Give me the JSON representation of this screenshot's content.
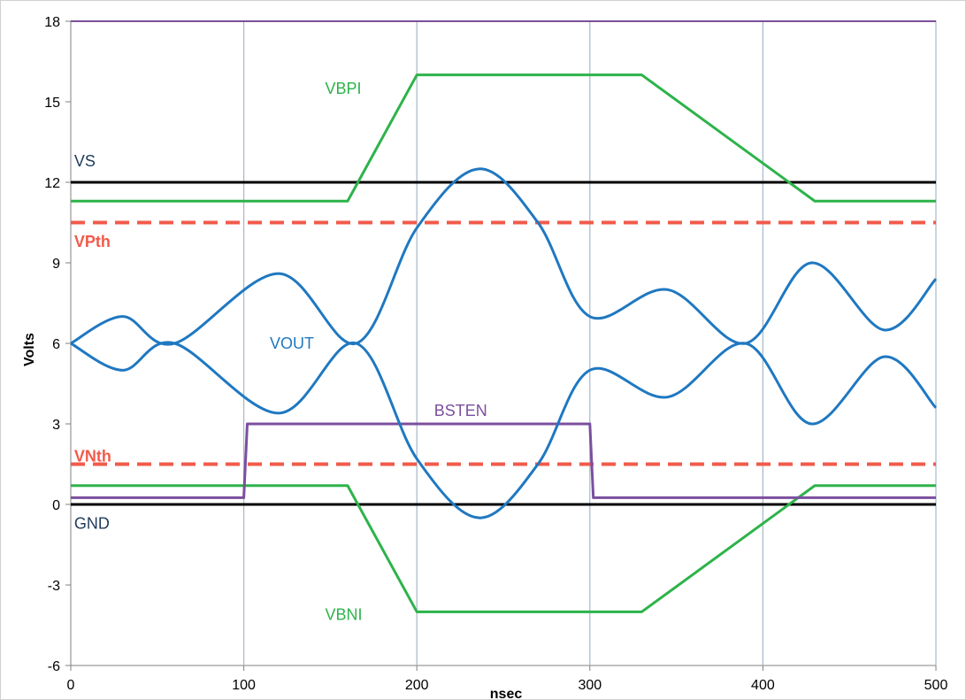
{
  "chart_data": {
    "type": "line",
    "title": "",
    "xlabel": "nsec",
    "ylabel": "Volts",
    "xlim": [
      0,
      500
    ],
    "ylim": [
      -6,
      18
    ],
    "x_ticks": [
      0,
      100,
      200,
      300,
      400,
      500
    ],
    "y_ticks": [
      -6,
      -3,
      0,
      3,
      6,
      9,
      12,
      15,
      18
    ],
    "grid": "vertical",
    "colors": {
      "black": "#000000",
      "green": "#2db34a",
      "red_dashed": "#f15a4a",
      "blue": "#1f78c1",
      "purple": "#7b4f9e",
      "grid": "#a8b8c8",
      "axis": "#808080",
      "label_dark": "#1f3a5a"
    },
    "series": [
      {
        "name": "VS",
        "color": "#000000",
        "dash": false,
        "points": [
          [
            0,
            12
          ],
          [
            500,
            12
          ]
        ]
      },
      {
        "name": "GND",
        "color": "#000000",
        "dash": false,
        "points": [
          [
            0,
            0
          ],
          [
            500,
            0
          ]
        ]
      },
      {
        "name": "VPth",
        "color": "#f15a4a",
        "dash": true,
        "points": [
          [
            0,
            10.5
          ],
          [
            500,
            10.5
          ]
        ]
      },
      {
        "name": "VNth",
        "color": "#f15a4a",
        "dash": true,
        "points": [
          [
            0,
            1.5
          ],
          [
            500,
            1.5
          ]
        ]
      },
      {
        "name": "VBPI",
        "color": "#2db34a",
        "dash": false,
        "points": [
          [
            0,
            11.3
          ],
          [
            160,
            11.3
          ],
          [
            200,
            16
          ],
          [
            330,
            16
          ],
          [
            430,
            11.3
          ],
          [
            500,
            11.3
          ]
        ]
      },
      {
        "name": "VBNI",
        "color": "#2db34a",
        "dash": false,
        "points": [
          [
            0,
            0.7
          ],
          [
            160,
            0.7
          ],
          [
            200,
            -4
          ],
          [
            330,
            -4
          ],
          [
            430,
            0.7
          ],
          [
            500,
            0.7
          ]
        ]
      },
      {
        "name": "BSTEN",
        "color": "#7b4f9e",
        "dash": false,
        "points": [
          [
            0,
            0.25
          ],
          [
            100,
            0.25
          ],
          [
            102,
            3
          ],
          [
            300,
            3
          ],
          [
            302,
            0.25
          ],
          [
            500,
            0.25
          ]
        ]
      },
      {
        "name": "VOUT",
        "color": "#1f78c1",
        "dash": false,
        "curve": true,
        "points": [
          [
            0,
            6
          ],
          [
            30,
            7
          ],
          [
            60,
            6
          ],
          [
            120,
            8.6
          ],
          [
            165,
            6
          ],
          [
            200,
            10.3
          ],
          [
            236,
            12.5
          ],
          [
            270,
            10.5
          ],
          [
            300,
            7
          ],
          [
            345,
            8
          ],
          [
            390,
            6
          ],
          [
            428,
            9
          ],
          [
            470,
            6.5
          ],
          [
            500,
            8.4
          ]
        ]
      },
      {
        "name": "VOUT",
        "color": "#1f78c1",
        "dash": false,
        "curve": true,
        "points": [
          [
            0,
            6
          ],
          [
            30,
            5
          ],
          [
            60,
            6
          ],
          [
            120,
            3.4
          ],
          [
            165,
            6
          ],
          [
            200,
            1.7
          ],
          [
            236,
            -0.5
          ],
          [
            270,
            1.5
          ],
          [
            300,
            5
          ],
          [
            345,
            4
          ],
          [
            390,
            6
          ],
          [
            428,
            3
          ],
          [
            470,
            5.5
          ],
          [
            500,
            3.6
          ]
        ]
      }
    ],
    "annotations": [
      {
        "text": "VS",
        "x": 2,
        "y": 12.6,
        "color": "#1f3a5a"
      },
      {
        "text": "VPth",
        "x": 2,
        "y": 9.6,
        "color": "#f15a4a",
        "bold": true
      },
      {
        "text": "VBPI",
        "x": 147,
        "y": 15.3,
        "color": "#2db34a"
      },
      {
        "text": "VOUT",
        "x": 115,
        "y": 5.8,
        "color": "#1f78c1"
      },
      {
        "text": "BSTEN",
        "x": 210,
        "y": 3.3,
        "color": "#7b4f9e"
      },
      {
        "text": "VNth",
        "x": 2,
        "y": 1.6,
        "color": "#f15a4a",
        "bold": true
      },
      {
        "text": "GND",
        "x": 2,
        "y": -0.9,
        "color": "#1f3a5a"
      },
      {
        "text": "VBNI",
        "x": 147,
        "y": -4.3,
        "color": "#2db34a"
      }
    ]
  }
}
